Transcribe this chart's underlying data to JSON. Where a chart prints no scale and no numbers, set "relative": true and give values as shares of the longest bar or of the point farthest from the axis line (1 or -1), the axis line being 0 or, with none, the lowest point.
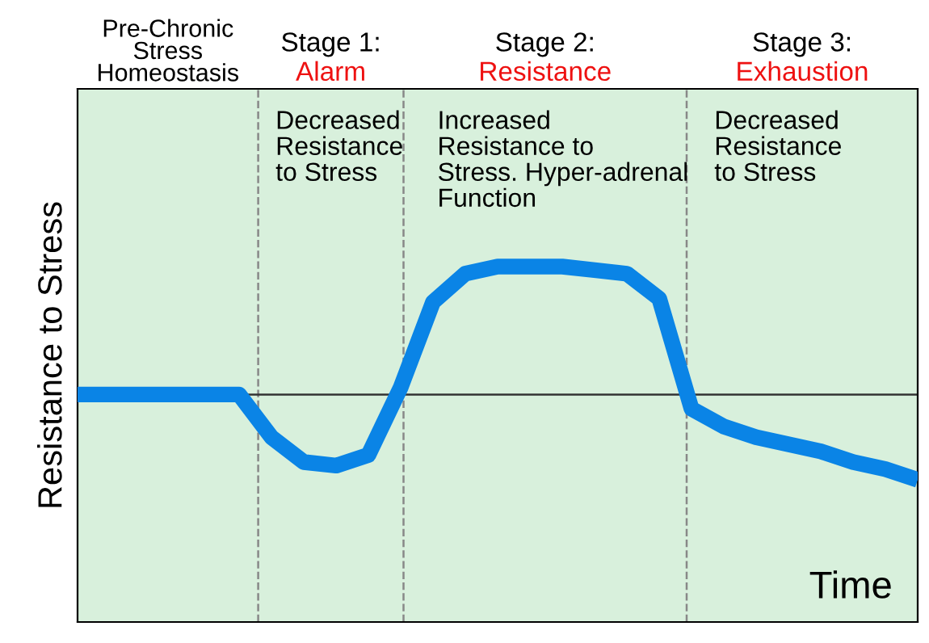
{
  "chart_data": {
    "type": "line",
    "relative": true,
    "ylabel": "Resistance to Stress",
    "xlabel": "Time",
    "categories": [
      null,
      null,
      null,
      null,
      null,
      null,
      null,
      null,
      null,
      null,
      null,
      null,
      null,
      null,
      null,
      null,
      null,
      null,
      null,
      null,
      null,
      null,
      null,
      null,
      null,
      null,
      null
    ],
    "series": [
      {
        "color": "#0a84e6",
        "values": [
          0.64,
          0.64,
          0.64,
          0.64,
          0.64,
          0.64,
          0.52,
          0.45,
          0.44,
          0.47,
          0.66,
          0.9,
          0.98,
          1.0,
          1.0,
          1.0,
          0.99,
          0.98,
          0.91,
          0.6,
          0.55,
          0.52,
          0.5,
          0.48,
          0.45,
          0.43,
          0.4
        ]
      }
    ],
    "ref_lines": [
      {
        "axis": "y",
        "value": 0.64,
        "color": "#333333",
        "line_style": "solid"
      }
    ],
    "annotations": [
      "Pre-Chronic\nStress\nHomeostasis",
      "Stage 1:\nAlarm",
      "Stage 2:\nResistance",
      "Stage 3:\nExhaustion",
      "Decreased\nResistance\nto Stress",
      "Increased\nResistance to\nStress. Hyper-adrenal\nFunction",
      "Decreased\nResistance\nto Stress"
    ]
  }
}
